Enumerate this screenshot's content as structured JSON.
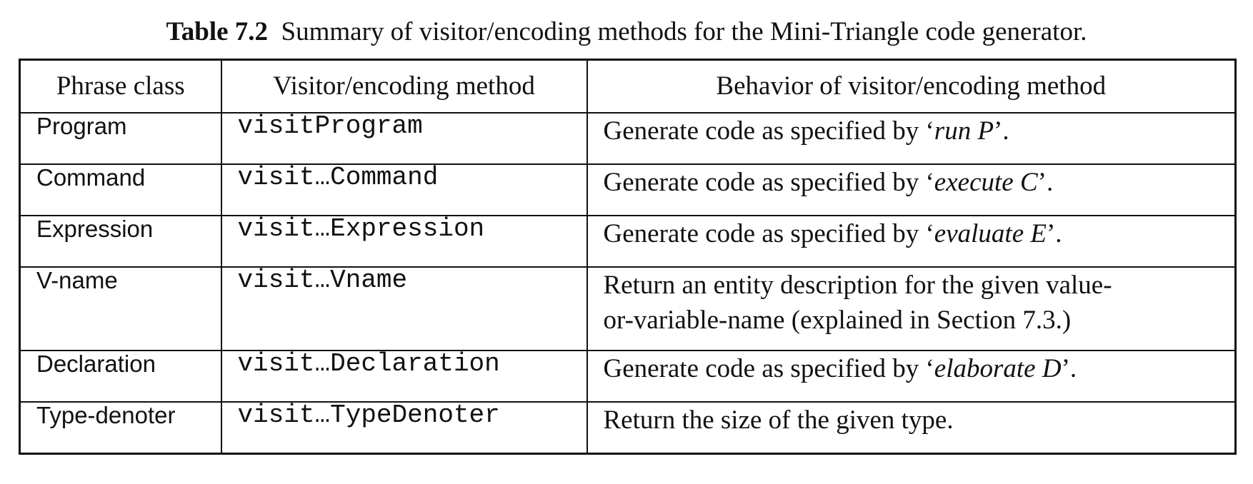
{
  "caption": {
    "label": "Table 7.2",
    "text": "Summary of visitor/encoding methods for the Mini-Triangle code generator."
  },
  "table": {
    "headers": [
      "Phrase class",
      "Visitor/encoding method",
      "Behavior of visitor/encoding method"
    ],
    "rows": [
      {
        "phrase_class": "Program",
        "method": "visitProgram",
        "behavior_pre": "Generate code as specified by ‘",
        "behavior_em": "run P",
        "behavior_post": "’."
      },
      {
        "phrase_class": "Command",
        "method": "visit…Command",
        "behavior_pre": "Generate code as specified by ‘",
        "behavior_em": "execute C",
        "behavior_post": "’."
      },
      {
        "phrase_class": "Expression",
        "method": "visit…Expression",
        "behavior_pre": "Generate code as specified by ‘",
        "behavior_em": "evaluate E",
        "behavior_post": "’."
      },
      {
        "phrase_class": "V-name",
        "method": "visit…Vname",
        "behavior_line1": "Return an entity description for the given value-",
        "behavior_line2": "or-variable-name (explained in Section 7.3.)"
      },
      {
        "phrase_class": "Declaration",
        "method": "visit…Declaration",
        "behavior_pre": "Generate code as specified by ‘",
        "behavior_em": "elaborate D",
        "behavior_post": "’."
      },
      {
        "phrase_class": "Type-denoter",
        "method": "visit…TypeDenoter",
        "behavior": "Return the size of the given type."
      }
    ]
  }
}
